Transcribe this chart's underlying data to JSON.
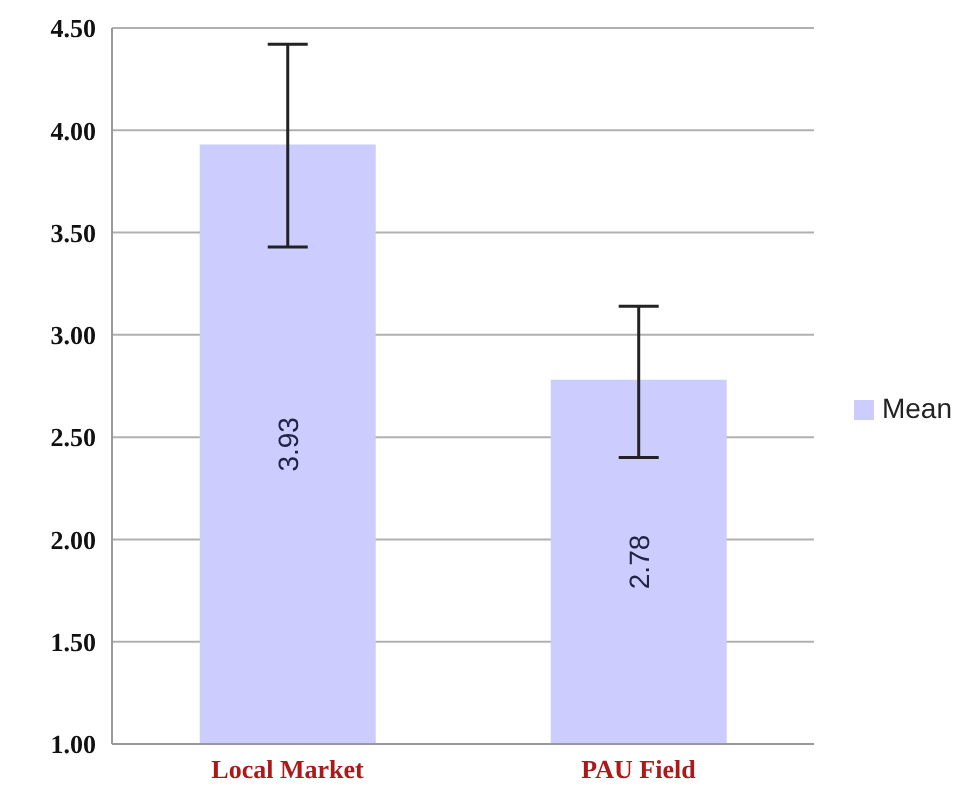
{
  "chart_data": {
    "type": "bar",
    "categories": [
      "Local Market",
      "PAU Field"
    ],
    "series": [
      {
        "name": "Mean",
        "color": "#ccccff",
        "values": [
          3.93,
          2.78
        ],
        "errors": [
          [
            3.43,
            4.42
          ],
          [
            2.4,
            3.14
          ]
        ]
      }
    ],
    "data_labels": true,
    "ylim": [
      1,
      4.5
    ],
    "yticks": [
      {
        "value": 1,
        "label": "1.00"
      },
      {
        "value": 1.5,
        "label": "1.50"
      },
      {
        "value": 2,
        "label": "2.00"
      },
      {
        "value": 2.5,
        "label": "2.50"
      },
      {
        "value": 3,
        "label": "3.00"
      },
      {
        "value": 3.5,
        "label": "3.50"
      },
      {
        "value": 4,
        "label": "4.00"
      },
      {
        "value": 4.5,
        "label": "4.50"
      }
    ],
    "grid": "y",
    "legend": "right"
  }
}
